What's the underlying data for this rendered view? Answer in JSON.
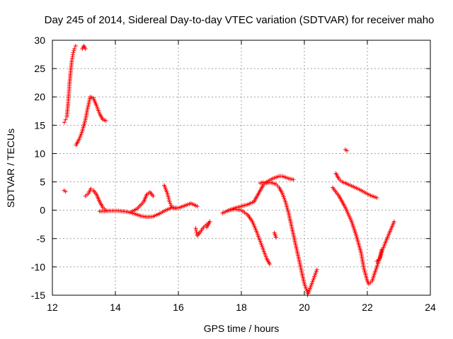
{
  "chart_data": {
    "type": "scatter",
    "title": "Day 245 of 2014, Sidereal Day-to-day VTEC variation (SDTVAR) for receiver maho",
    "xlabel": "GPS time / hours",
    "ylabel": "SDTVAR / TECUs",
    "xlim": [
      12,
      24
    ],
    "ylim": [
      -15,
      30
    ],
    "xticks": [
      12,
      14,
      16,
      18,
      20,
      22,
      24
    ],
    "yticks": [
      -15,
      -10,
      -5,
      0,
      5,
      10,
      15,
      20,
      25,
      30
    ],
    "grid": true,
    "marker": "+",
    "color": "#ff0000",
    "series": [
      {
        "points": [
          [
            12.37,
            3.5
          ],
          [
            12.42,
            3.3
          ]
        ]
      },
      {
        "points": [
          [
            12.38,
            15.5
          ],
          [
            12.42,
            16.0
          ],
          [
            12.46,
            16.5
          ],
          [
            12.5,
            19.0
          ],
          [
            12.54,
            22.0
          ],
          [
            12.58,
            24.5
          ],
          [
            12.62,
            26.5
          ],
          [
            12.66,
            27.8
          ],
          [
            12.7,
            28.5
          ],
          [
            12.74,
            29.0
          ]
        ]
      },
      {
        "points": [
          [
            12.95,
            28.5
          ],
          [
            13.0,
            29.0
          ],
          [
            13.05,
            28.5
          ]
        ]
      },
      {
        "points": [
          [
            12.75,
            11.5
          ],
          [
            12.85,
            12.5
          ],
          [
            12.95,
            14.0
          ],
          [
            13.05,
            16.0
          ],
          [
            13.12,
            18.0
          ],
          [
            13.2,
            20.0
          ],
          [
            13.3,
            19.8
          ],
          [
            13.4,
            18.5
          ],
          [
            13.5,
            17.0
          ],
          [
            13.6,
            16.0
          ],
          [
            13.7,
            15.8
          ]
        ]
      },
      {
        "points": [
          [
            13.05,
            2.5
          ],
          [
            13.15,
            3.0
          ],
          [
            13.22,
            3.8
          ],
          [
            13.3,
            3.5
          ],
          [
            13.4,
            2.8
          ],
          [
            13.5,
            1.5
          ],
          [
            13.6,
            0.5
          ],
          [
            13.7,
            0.0
          ]
        ]
      },
      {
        "points": [
          [
            13.5,
            -0.2
          ],
          [
            13.8,
            -0.1
          ],
          [
            14.1,
            -0.1
          ],
          [
            14.4,
            -0.3
          ],
          [
            14.6,
            -0.6
          ],
          [
            14.8,
            -1.0
          ],
          [
            15.0,
            -1.2
          ],
          [
            15.2,
            -1.1
          ],
          [
            15.4,
            -0.6
          ],
          [
            15.6,
            0.0
          ],
          [
            15.8,
            0.5
          ],
          [
            16.0,
            0.4
          ],
          [
            16.2,
            0.8
          ],
          [
            16.4,
            1.2
          ],
          [
            16.6,
            0.7
          ]
        ]
      },
      {
        "points": [
          [
            14.5,
            -0.3
          ],
          [
            14.7,
            0.3
          ],
          [
            14.9,
            1.5
          ],
          [
            15.0,
            2.8
          ],
          [
            15.1,
            3.2
          ],
          [
            15.2,
            2.5
          ]
        ]
      },
      {
        "points": [
          [
            15.55,
            4.4
          ],
          [
            15.65,
            3.0
          ],
          [
            15.72,
            1.5
          ],
          [
            15.8,
            0.5
          ],
          [
            15.9,
            0.3
          ]
        ]
      },
      {
        "points": [
          [
            16.55,
            -3.2
          ],
          [
            16.6,
            -4.5
          ],
          [
            16.7,
            -3.8
          ],
          [
            16.8,
            -3.0
          ],
          [
            16.9,
            -2.5
          ],
          [
            17.0,
            -2.0
          ],
          [
            16.9,
            -3.0
          ]
        ]
      },
      {
        "points": [
          [
            17.4,
            -0.5
          ],
          [
            17.6,
            0.0
          ],
          [
            17.8,
            0.4
          ],
          [
            18.0,
            0.7
          ],
          [
            18.2,
            1.0
          ],
          [
            18.4,
            1.5
          ],
          [
            18.5,
            2.5
          ],
          [
            18.6,
            3.5
          ],
          [
            18.7,
            4.5
          ],
          [
            18.8,
            5.0
          ],
          [
            18.9,
            5.3
          ],
          [
            19.0,
            5.6
          ],
          [
            19.1,
            5.8
          ],
          [
            19.2,
            6.0
          ],
          [
            19.3,
            6.0
          ],
          [
            19.4,
            5.8
          ],
          [
            19.5,
            5.6
          ],
          [
            19.65,
            5.4
          ]
        ]
      },
      {
        "points": [
          [
            17.6,
            0.0
          ],
          [
            17.8,
            0.2
          ],
          [
            18.0,
            0.0
          ],
          [
            18.2,
            -0.8
          ],
          [
            18.35,
            -2.0
          ],
          [
            18.5,
            -4.0
          ],
          [
            18.6,
            -5.5
          ],
          [
            18.7,
            -7.0
          ],
          [
            18.8,
            -8.5
          ],
          [
            18.9,
            -9.5
          ]
        ]
      },
      {
        "points": [
          [
            18.6,
            4.8
          ],
          [
            18.7,
            4.9
          ],
          [
            18.8,
            4.8
          ],
          [
            18.9,
            4.9
          ],
          [
            19.0,
            4.8
          ],
          [
            19.1,
            4.6
          ],
          [
            19.2,
            4.0
          ],
          [
            19.3,
            3.0
          ],
          [
            19.4,
            1.5
          ],
          [
            19.5,
            -0.5
          ],
          [
            19.6,
            -3.0
          ],
          [
            19.7,
            -5.5
          ],
          [
            19.8,
            -8.0
          ],
          [
            19.9,
            -10.5
          ],
          [
            20.0,
            -13.0
          ],
          [
            20.1,
            -14.5
          ]
        ]
      },
      {
        "points": [
          [
            19.05,
            -4.0
          ],
          [
            19.1,
            -4.8
          ]
        ]
      },
      {
        "points": [
          [
            20.1,
            -15.0
          ],
          [
            20.2,
            -13.5
          ],
          [
            20.3,
            -12.0
          ],
          [
            20.4,
            -10.5
          ]
        ]
      },
      {
        "points": [
          [
            20.9,
            4.0
          ],
          [
            21.1,
            2.5
          ],
          [
            21.3,
            0.5
          ],
          [
            21.5,
            -2.0
          ],
          [
            21.65,
            -4.5
          ],
          [
            21.8,
            -7.5
          ],
          [
            21.9,
            -10.5
          ],
          [
            22.0,
            -12.5
          ],
          [
            22.05,
            -13.0
          ],
          [
            22.15,
            -12.5
          ],
          [
            22.3,
            -10.0
          ],
          [
            22.45,
            -7.5
          ],
          [
            22.55,
            -6.0
          ],
          [
            22.7,
            -4.0
          ],
          [
            22.85,
            -2.0
          ]
        ]
      },
      {
        "points": [
          [
            21.0,
            6.5
          ],
          [
            21.1,
            5.5
          ],
          [
            21.2,
            5.0
          ],
          [
            21.3,
            4.8
          ],
          [
            21.5,
            4.3
          ],
          [
            21.7,
            3.8
          ],
          [
            21.9,
            3.2
          ],
          [
            22.1,
            2.6
          ],
          [
            22.3,
            2.2
          ]
        ]
      },
      {
        "points": [
          [
            21.3,
            10.7
          ],
          [
            21.35,
            10.5
          ]
        ]
      },
      {
        "points": [
          [
            22.3,
            -9.0
          ],
          [
            22.4,
            -8.5
          ],
          [
            22.45,
            -7.0
          ]
        ]
      }
    ]
  }
}
